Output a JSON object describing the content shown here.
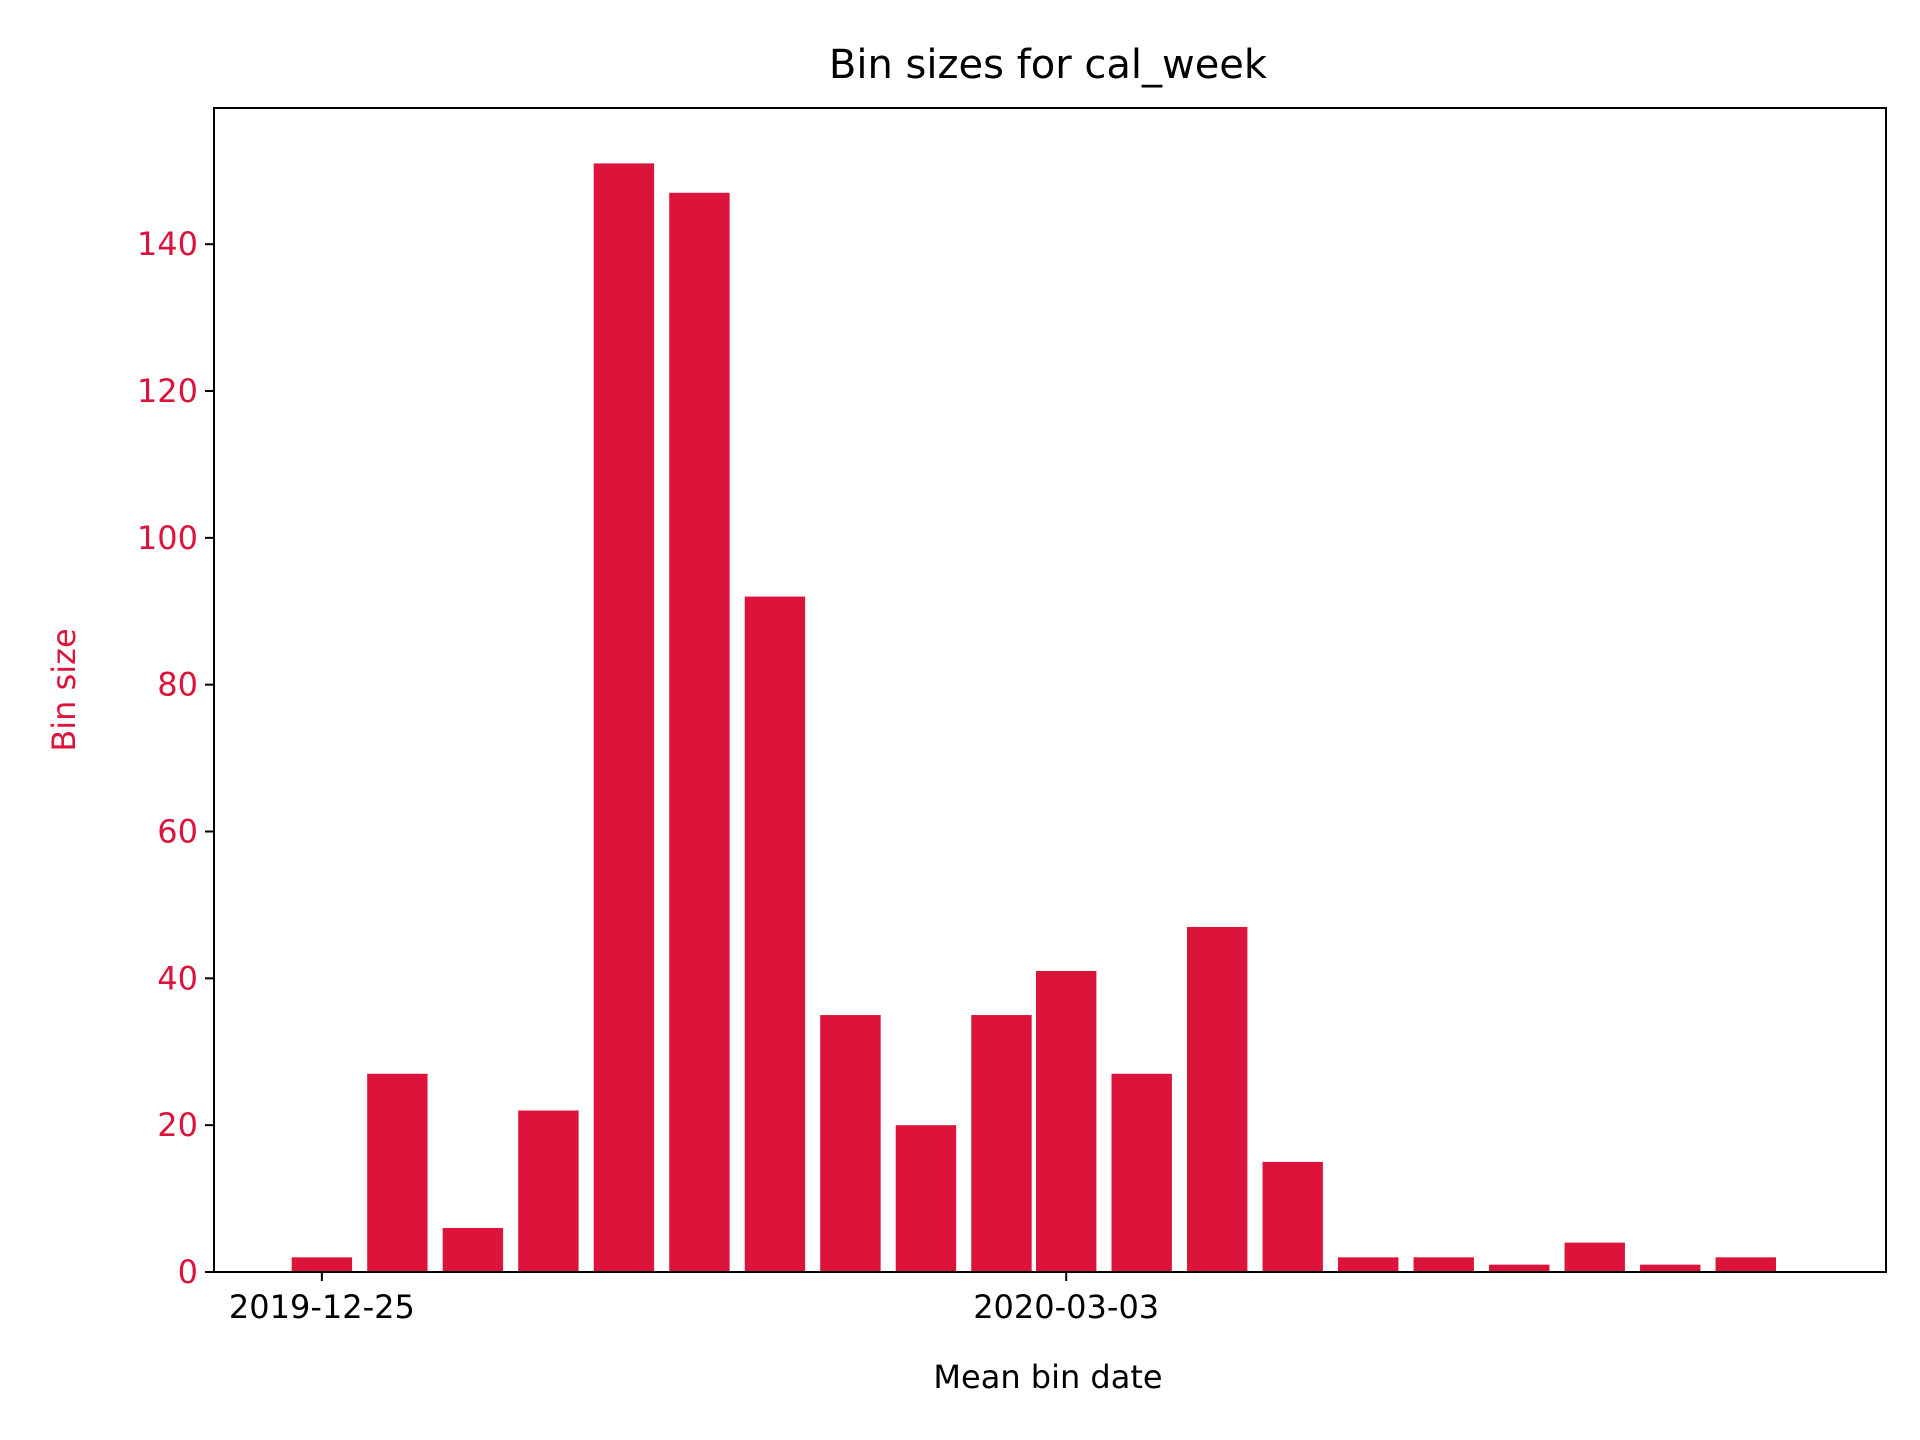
{
  "colors": {
    "bar": "#dc143c",
    "y_axis_text": "#dc143c",
    "axis": "#000000",
    "background": "#ffffff"
  },
  "chart_data": {
    "type": "bar",
    "title": "Bin sizes for cal_week",
    "xlabel": "Mean bin date",
    "ylabel": "Bin size",
    "x_type": "date",
    "x": [
      "2019-12-25",
      "2020-01-01",
      "2020-01-08",
      "2020-01-15",
      "2020-01-22",
      "2020-01-29",
      "2020-02-05",
      "2020-02-12",
      "2020-02-19",
      "2020-02-26",
      "2020-03-03",
      "2020-03-10",
      "2020-03-17",
      "2020-03-24",
      "2020-03-31",
      "2020-04-07",
      "2020-04-14",
      "2020-04-21",
      "2020-04-28",
      "2020-05-05"
    ],
    "values": [
      2,
      27,
      6,
      22,
      151,
      147,
      92,
      35,
      20,
      35,
      41,
      27,
      47,
      15,
      2,
      2,
      1,
      4,
      1,
      2
    ],
    "xticks": [
      "2019-12-25",
      "2020-03-03"
    ],
    "yticks": [
      0,
      20,
      40,
      60,
      80,
      100,
      120,
      140
    ],
    "xlim": [
      "2019-12-15",
      "2020-05-18"
    ],
    "ylim": [
      0,
      158.55
    ],
    "grid": false,
    "legend": false
  }
}
